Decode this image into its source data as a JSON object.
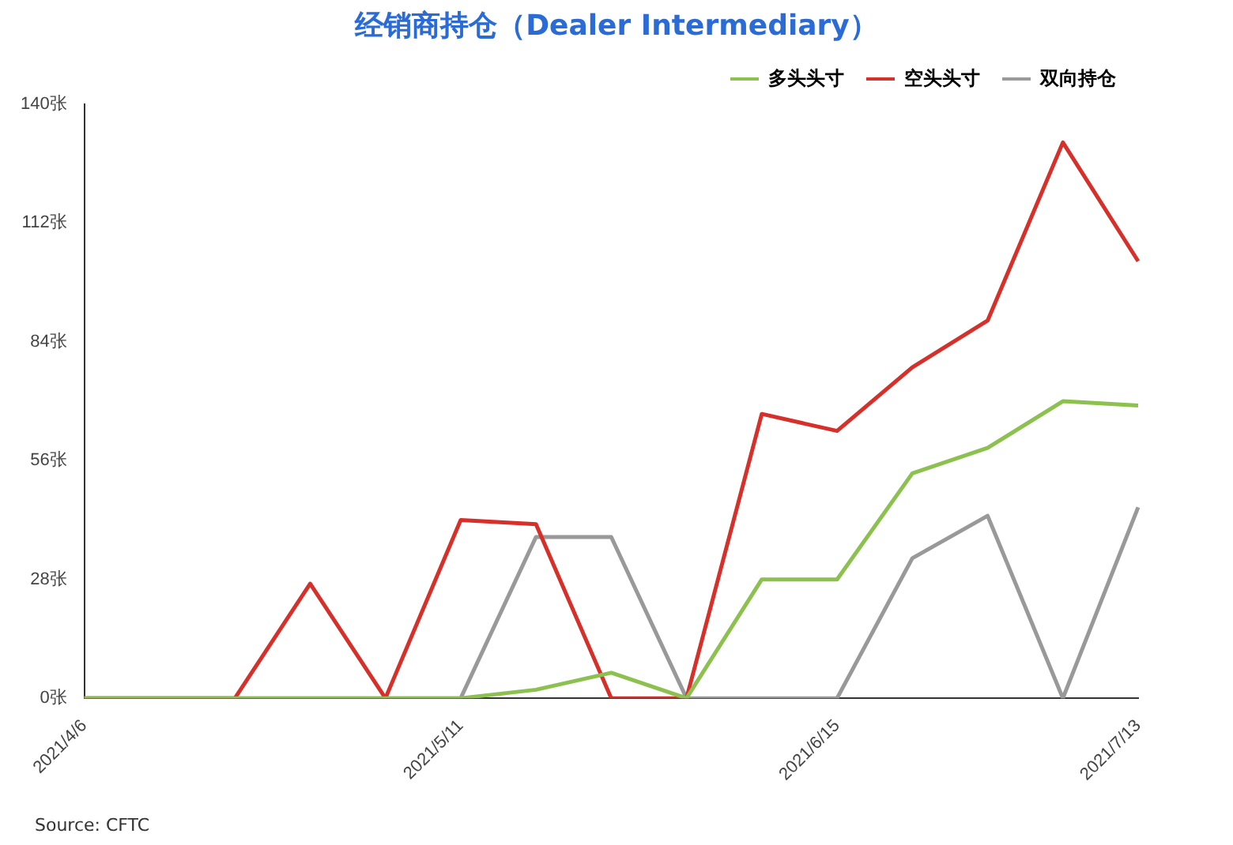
{
  "chart_data": {
    "type": "line",
    "title": "经销商持仓（Dealer Intermediary）",
    "categories": [
      "2021/4/6",
      null,
      null,
      null,
      null,
      "2021/5/11",
      null,
      null,
      null,
      null,
      "2021/6/15",
      null,
      null,
      null,
      "2021/7/13"
    ],
    "series": [
      {
        "name": "多头头寸",
        "color": "#8cc04f",
        "values": [
          0,
          0,
          0,
          0,
          0,
          0,
          2,
          6,
          0,
          28,
          28,
          53,
          59,
          70,
          69
        ]
      },
      {
        "name": "空头头寸",
        "color": "#d6302a",
        "values": [
          0,
          0,
          0,
          27,
          0,
          42,
          41,
          0,
          0,
          67,
          63,
          78,
          89,
          131,
          103
        ]
      },
      {
        "name": "双向持仓",
        "color": "#999999",
        "values": [
          0,
          0,
          0,
          0,
          0,
          0,
          38,
          38,
          0,
          0,
          0,
          33,
          43,
          0,
          45
        ]
      }
    ],
    "ylim": [
      0,
      140
    ],
    "yticks": [
      {
        "value": 0,
        "label": "0张"
      },
      {
        "value": 28,
        "label": "28张"
      },
      {
        "value": 56,
        "label": "56张"
      },
      {
        "value": 84,
        "label": "84张"
      },
      {
        "value": 112,
        "label": "112张"
      },
      {
        "value": 140,
        "label": "140张"
      }
    ],
    "grid": false,
    "legend": "top right",
    "marker": "none",
    "line_style": "solid",
    "annotations": [
      "Source: CFTC"
    ]
  }
}
